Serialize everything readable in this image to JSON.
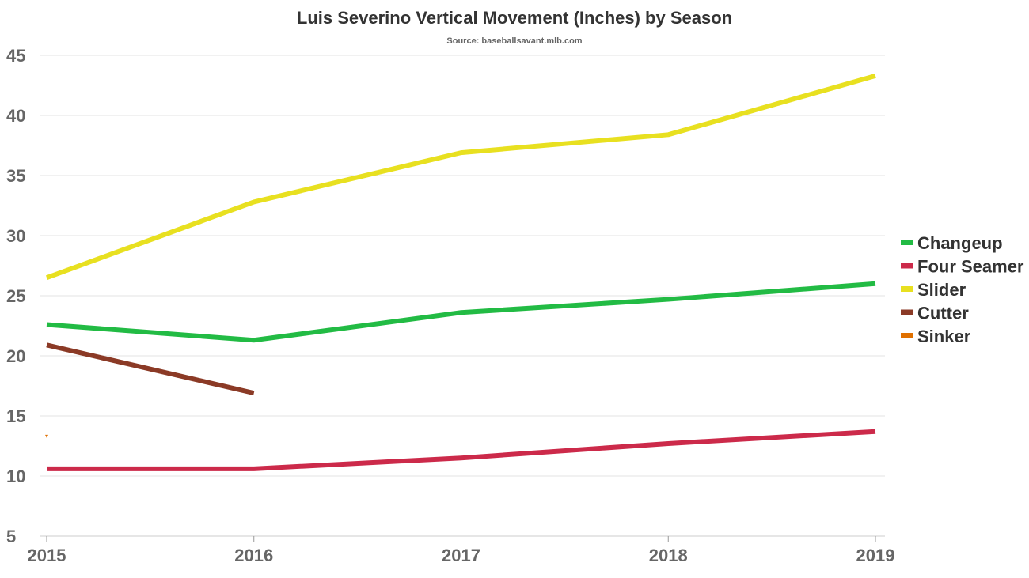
{
  "chart_data": {
    "type": "line",
    "title": "Luis Severino Vertical Movement (Inches) by Season",
    "subtitle": "Source: baseballsavant.mlb.com",
    "xlabel": "",
    "ylabel": "",
    "x": [
      "2015",
      "2016",
      "2017",
      "2018",
      "2019"
    ],
    "ylim": [
      5,
      45
    ],
    "yticks": [
      5,
      10,
      15,
      20,
      25,
      30,
      35,
      40,
      45
    ],
    "grid": true,
    "legend_position": "right",
    "series": [
      {
        "name": "Changeup",
        "color": "#22bb44",
        "values": [
          22.6,
          21.3,
          23.6,
          24.7,
          26.0
        ]
      },
      {
        "name": "Four Seamer",
        "color": "#cc2a4a",
        "values": [
          10.6,
          10.6,
          11.5,
          12.7,
          13.7
        ]
      },
      {
        "name": "Slider",
        "color": "#e8e020",
        "values": [
          26.5,
          32.8,
          36.9,
          38.4,
          43.3
        ]
      },
      {
        "name": "Cutter",
        "color": "#8b3a26",
        "values": [
          20.9,
          16.9,
          null,
          null,
          null
        ]
      },
      {
        "name": "Sinker",
        "color": "#e07000",
        "values": [
          13.3,
          null,
          null,
          null,
          null
        ]
      }
    ]
  }
}
